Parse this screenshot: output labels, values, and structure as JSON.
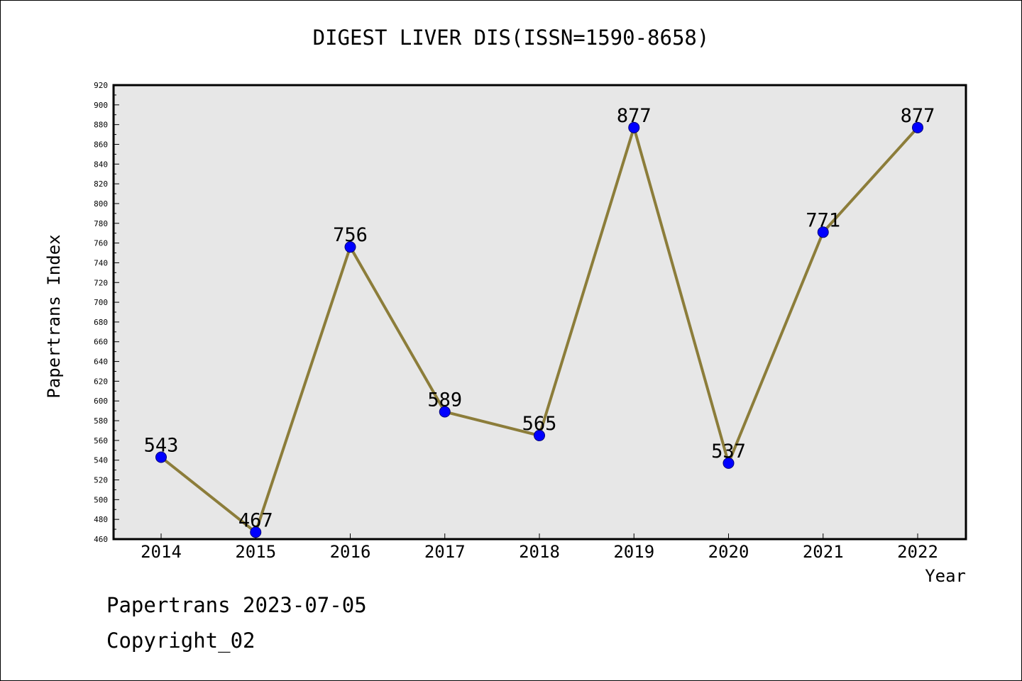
{
  "chart_data": {
    "type": "line",
    "title": "DIGEST LIVER DIS(ISSN=1590-8658)",
    "xlabel": "Year",
    "ylabel": "Papertrans Index",
    "categories": [
      "2014",
      "2015",
      "2016",
      "2017",
      "2018",
      "2019",
      "2020",
      "2021",
      "2022"
    ],
    "series": [
      {
        "values": [
          543,
          467,
          756,
          589,
          565,
          877,
          537,
          771,
          877
        ],
        "data_labels": [
          "543",
          "467",
          "756",
          "589",
          "565",
          "877",
          "537",
          "771",
          "877"
        ]
      }
    ],
    "ylim": [
      460,
      920
    ],
    "yticks": [
      "460",
      "480",
      "500",
      "520",
      "540",
      "560",
      "580",
      "600",
      "620",
      "640",
      "660",
      "680",
      "700",
      "720",
      "740",
      "760",
      "780",
      "800",
      "820",
      "840",
      "860",
      "880",
      "900",
      "920"
    ],
    "grid": false,
    "colors": {
      "plot_background": "#e7e7e7",
      "line": "#8c7d3a",
      "marker_fill": "#0000ff",
      "marker_stroke": "#00007a"
    }
  },
  "footer": {
    "date_line": "Papertrans 2023-07-05",
    "copyright_line": "Copyright_02"
  }
}
